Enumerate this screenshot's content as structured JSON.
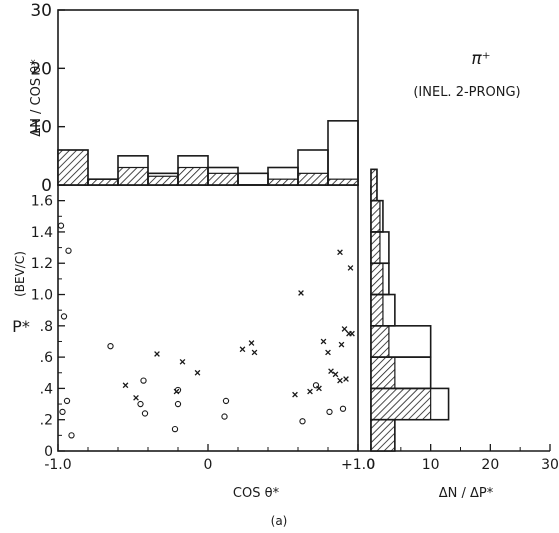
{
  "figure_label": "(a)",
  "colors": {
    "ink": "#1a1a1a",
    "background": "#ffffff"
  },
  "chart_data": [
    {
      "type": "histogram",
      "panel": "top",
      "ylabel": "ΔN / COS θ*",
      "ylim": [
        0,
        30
      ],
      "yticks": [
        "30",
        "20",
        "10",
        "0"
      ],
      "annotation_line1": "π⁺",
      "annotation_line2": "(INEL. 2-PRONG)",
      "bins": [
        -1.0,
        -0.8,
        -0.6,
        -0.4,
        -0.2,
        0.0,
        0.2,
        0.4,
        0.6,
        0.8,
        1.0
      ],
      "series": [
        {
          "values": [
            6,
            1,
            5,
            2,
            5,
            3,
            2,
            3,
            6,
            11
          ],
          "style": "outline"
        },
        {
          "values": [
            6,
            1,
            3,
            1.5,
            3,
            2,
            0,
            1,
            2,
            1
          ],
          "style": "hatched"
        }
      ]
    },
    {
      "type": "scatter",
      "panel": "main",
      "xlabel": "COS θ*",
      "ylabel": "P*",
      "yunit": "(BEV/C)",
      "xlim": [
        -1.0,
        1.0
      ],
      "ylim": [
        0,
        1.7
      ],
      "xticks": [
        "-1.0",
        "0",
        "+1.0"
      ],
      "yticks": [
        "1.6",
        "1.4",
        "1.2",
        "1.0",
        ".8",
        ".6",
        ".4",
        ".2",
        "0"
      ],
      "series": [
        {
          "marker": "o",
          "points": [
            [
              -0.98,
              1.44
            ],
            [
              -0.93,
              1.28
            ],
            [
              -0.96,
              0.86
            ],
            [
              -0.94,
              0.32
            ],
            [
              -0.97,
              0.25
            ],
            [
              -0.91,
              0.1
            ],
            [
              -0.65,
              0.67
            ],
            [
              -0.43,
              0.45
            ],
            [
              -0.45,
              0.3
            ],
            [
              -0.42,
              0.24
            ],
            [
              -0.2,
              0.39
            ],
            [
              -0.2,
              0.3
            ],
            [
              -0.22,
              0.14
            ],
            [
              0.12,
              0.32
            ],
            [
              0.11,
              0.22
            ],
            [
              0.63,
              0.19
            ],
            [
              0.72,
              0.42
            ],
            [
              0.81,
              0.25
            ],
            [
              0.9,
              0.27
            ]
          ]
        },
        {
          "marker": "x",
          "points": [
            [
              -0.55,
              0.42
            ],
            [
              -0.48,
              0.34
            ],
            [
              -0.34,
              0.62
            ],
            [
              -0.17,
              0.57
            ],
            [
              -0.07,
              0.5
            ],
            [
              -0.21,
              0.38
            ],
            [
              0.23,
              0.65
            ],
            [
              0.29,
              0.69
            ],
            [
              0.31,
              0.63
            ],
            [
              0.62,
              1.01
            ],
            [
              0.58,
              0.36
            ],
            [
              0.68,
              0.38
            ],
            [
              0.74,
              0.4
            ],
            [
              0.77,
              0.7
            ],
            [
              0.8,
              0.63
            ],
            [
              0.82,
              0.51
            ],
            [
              0.85,
              0.49
            ],
            [
              0.88,
              0.45
            ],
            [
              0.88,
              1.27
            ],
            [
              0.91,
              0.78
            ],
            [
              0.94,
              0.75
            ],
            [
              0.96,
              0.75
            ],
            [
              0.89,
              0.68
            ],
            [
              0.92,
              0.46
            ],
            [
              0.95,
              1.17
            ]
          ]
        }
      ]
    },
    {
      "type": "histogram",
      "panel": "right",
      "orientation": "horizontal",
      "xlabel": "ΔN / ΔP*",
      "xlim": [
        0,
        30
      ],
      "xticks": [
        "0",
        "10",
        "20",
        "30"
      ],
      "bins": [
        0,
        0.2,
        0.4,
        0.6,
        0.8,
        1.0,
        1.2,
        1.4,
        1.6,
        1.8
      ],
      "series": [
        {
          "values": [
            4,
            13,
            10,
            10,
            4,
            3,
            3,
            2,
            1
          ],
          "style": "outline"
        },
        {
          "values": [
            4,
            10,
            4,
            3,
            2,
            2,
            1.5,
            1.5,
            1
          ],
          "style": "hatched"
        }
      ]
    }
  ]
}
